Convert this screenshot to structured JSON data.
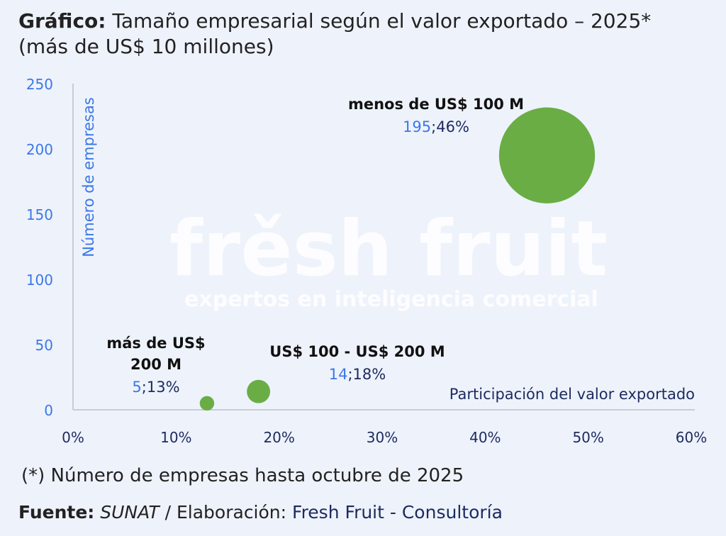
{
  "header": {
    "title_bold": "Gráfico:",
    "title_rest": " Tamaño empresarial según el valor exportado – 2025*",
    "subtitle": "(más de US$ 10 millones)"
  },
  "watermark": {
    "brand": "frěsh fruit",
    "tagline": "expertos en inteligencia comercial"
  },
  "chart_data": {
    "type": "scatter",
    "title": "Tamaño empresarial según el valor exportado – 2025*",
    "xlabel": "Participación del valor exportado",
    "ylabel": "Número de empresas",
    "xlim": [
      0,
      60
    ],
    "ylim": [
      0,
      250
    ],
    "x_ticks": [
      "0%",
      "10%",
      "20%",
      "30%",
      "40%",
      "50%",
      "60%"
    ],
    "x_tick_values": [
      0,
      10,
      20,
      30,
      40,
      50,
      60
    ],
    "y_ticks": [
      "0",
      "50",
      "100",
      "150",
      "200",
      "250"
    ],
    "y_tick_values": [
      0,
      50,
      100,
      150,
      200,
      250
    ],
    "grid": false,
    "bubble_color": "#6aad45",
    "points": [
      {
        "label_lines": [
          "más de US$",
          "200 M"
        ],
        "x": 13,
        "y": 5,
        "count": "5",
        "pct": ";13%",
        "size": 1
      },
      {
        "label_lines": [
          "US$ 100 - US$ 200 M"
        ],
        "x": 18,
        "y": 14,
        "count": "14",
        "pct": ";18%",
        "size": 2.6
      },
      {
        "label_lines": [
          "menos de US$ 100 M"
        ],
        "x": 46,
        "y": 195,
        "count": "195",
        "pct": ";46%",
        "size": 44
      }
    ]
  },
  "footer": {
    "note": "(*) Número de empresas hasta octubre de 2025",
    "source_label": "Fuente:",
    "source_name": " SUNAT",
    "source_sep": " / Elaboración: ",
    "source_brand": "Fresh Fruit - Consultoría"
  }
}
